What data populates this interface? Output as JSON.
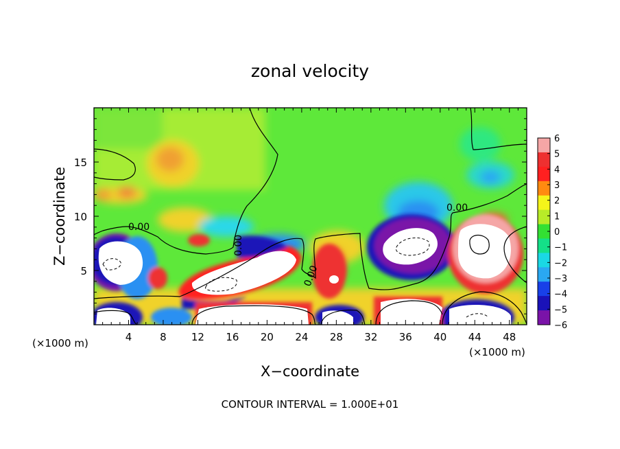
{
  "chart_data": {
    "type": "heatmap",
    "title": "zonal velocity",
    "xlabel": "X−coordinate",
    "ylabel": "Z−coordinate",
    "x_unit_left": "(×1000 m)",
    "x_unit_right": "(×1000 m)",
    "footer": "CONTOUR INTERVAL = 1.000E+01",
    "xlim": [
      0,
      50
    ],
    "ylim": [
      0,
      20
    ],
    "xticks": [
      4,
      8,
      12,
      16,
      20,
      24,
      28,
      32,
      36,
      40,
      44,
      48
    ],
    "yticks": [
      5,
      10,
      15
    ],
    "colorbar": {
      "ticks": [
        6,
        5,
        4,
        3,
        2,
        1,
        0,
        -1,
        -2,
        -3,
        -4,
        -5,
        -6
      ],
      "tick_labels": [
        "6",
        "5",
        "4",
        "3",
        "2",
        "1",
        "0",
        "−1",
        "−2",
        "−3",
        "−4",
        "−5",
        "−6"
      ],
      "colors": [
        "#f5a6a6",
        "#ee3030",
        "#ff2020",
        "#ff8a10",
        "#f4f41a",
        "#b8ec28",
        "#33e033",
        "#14e088",
        "#1ad8e4",
        "#2aa8f2",
        "#1840e8",
        "#1a12b8",
        "#7a13a8"
      ]
    },
    "contour_labels": [
      "0.00",
      "0.00",
      "0.00",
      "0.00"
    ],
    "features": [
      {
        "kind": "negative_core",
        "x": 2.5,
        "z": 5.5
      },
      {
        "kind": "positive_core",
        "x": 14,
        "z": 4
      },
      {
        "kind": "positive_core",
        "x": 20,
        "z": 5.5
      },
      {
        "kind": "negative_core",
        "x": 37,
        "z": 7.5
      },
      {
        "kind": "positive_core",
        "x": 45,
        "z": 7
      },
      {
        "kind": "positive_band",
        "x": 36,
        "z": 1.5
      },
      {
        "kind": "negative_core",
        "x": 3,
        "z": 0.5
      },
      {
        "kind": "negative_core",
        "x": 45,
        "z": 0.5
      }
    ]
  }
}
